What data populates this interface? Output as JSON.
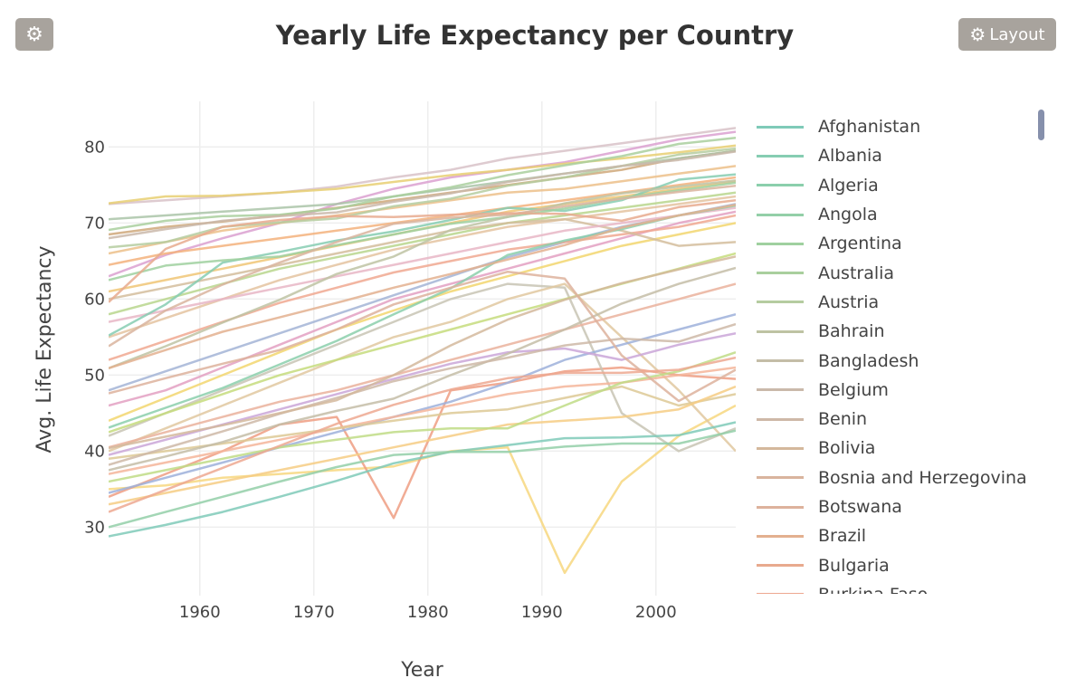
{
  "toolbar": {
    "settings_icon": "gear-icon",
    "layout_label": "Layout",
    "layout_icon": "gear-icon"
  },
  "chart_data": {
    "type": "line",
    "title": "Yearly Life Expectancy per Country",
    "xlabel": "Year",
    "ylabel": "Avg. Life Expectancy",
    "xlim": [
      1952,
      2007
    ],
    "ylim": [
      21,
      86
    ],
    "x_ticks": [
      1960,
      1970,
      1980,
      1990,
      2000
    ],
    "y_ticks": [
      30,
      40,
      50,
      60,
      70,
      80
    ],
    "grid": true,
    "legend_position": "right",
    "x": [
      1952,
      1957,
      1962,
      1967,
      1972,
      1977,
      1982,
      1987,
      1992,
      1997,
      2002,
      2007
    ],
    "series": [
      {
        "name": "Afghanistan",
        "color": "#7fcab8",
        "values": [
          28.8,
          30.3,
          32.0,
          34.0,
          36.1,
          38.4,
          39.9,
          40.8,
          41.7,
          41.8,
          42.1,
          43.8
        ]
      },
      {
        "name": "Albania",
        "color": "#86cdb2",
        "values": [
          55.2,
          59.3,
          64.8,
          66.2,
          67.7,
          68.9,
          70.4,
          72.0,
          71.6,
          73.0,
          75.7,
          76.4
        ]
      },
      {
        "name": "Algeria",
        "color": "#8bcfac",
        "values": [
          43.1,
          45.7,
          48.3,
          51.4,
          54.5,
          58.0,
          61.4,
          65.8,
          67.7,
          69.2,
          71.0,
          72.3
        ]
      },
      {
        "name": "Angola",
        "color": "#93cfa8",
        "values": [
          30.0,
          32.0,
          34.0,
          36.0,
          37.9,
          39.5,
          39.9,
          39.9,
          40.6,
          41.0,
          41.0,
          42.7
        ]
      },
      {
        "name": "Argentina",
        "color": "#9fd09f",
        "values": [
          62.5,
          64.4,
          65.1,
          65.6,
          67.1,
          68.5,
          69.9,
          70.8,
          71.9,
          73.3,
          74.3,
          75.3
        ]
      },
      {
        "name": "Australia",
        "color": "#a9cf9d",
        "values": [
          69.1,
          70.3,
          70.9,
          71.1,
          71.9,
          73.5,
          74.7,
          76.3,
          77.6,
          78.8,
          80.4,
          81.2
        ]
      },
      {
        "name": "Austria",
        "color": "#b5cca0",
        "values": [
          66.8,
          67.5,
          69.5,
          70.1,
          70.6,
          72.2,
          73.2,
          74.9,
          76.0,
          77.5,
          79.0,
          79.8
        ]
      },
      {
        "name": "Bahrain",
        "color": "#bec3a3",
        "values": [
          50.9,
          53.8,
          56.9,
          59.9,
          63.3,
          65.6,
          69.1,
          70.8,
          72.6,
          73.9,
          74.8,
          75.6
        ]
      },
      {
        "name": "Bangladesh",
        "color": "#c4bda7",
        "values": [
          37.5,
          39.3,
          41.2,
          43.5,
          45.3,
          46.9,
          50.0,
          52.8,
          56.0,
          59.4,
          62.0,
          64.1
        ]
      },
      {
        "name": "Belgium",
        "color": "#cab9aa",
        "values": [
          68.0,
          69.2,
          70.3,
          70.9,
          71.4,
          72.8,
          73.9,
          75.4,
          76.5,
          77.5,
          78.3,
          79.4
        ]
      },
      {
        "name": "Benin",
        "color": "#ceb8a7",
        "values": [
          38.2,
          40.4,
          42.6,
          44.9,
          47.0,
          49.2,
          50.9,
          52.3,
          53.9,
          54.8,
          54.4,
          56.7
        ]
      },
      {
        "name": "Bolivia",
        "color": "#d4b89c",
        "values": [
          40.4,
          41.9,
          43.4,
          45.0,
          46.7,
          50.0,
          53.9,
          57.3,
          59.9,
          62.1,
          63.9,
          65.6
        ]
      },
      {
        "name": "Bosnia and Herzegovina",
        "color": "#d9b49e",
        "values": [
          53.8,
          58.5,
          61.9,
          64.8,
          67.5,
          69.9,
          70.7,
          71.1,
          72.2,
          73.2,
          74.1,
          74.9
        ]
      },
      {
        "name": "Botswana",
        "color": "#ddb29c",
        "values": [
          47.6,
          49.6,
          51.5,
          53.3,
          56.0,
          59.3,
          61.5,
          63.6,
          62.7,
          52.6,
          46.6,
          50.7
        ]
      },
      {
        "name": "Brazil",
        "color": "#e3b08f",
        "values": [
          50.9,
          53.3,
          55.7,
          57.6,
          59.5,
          61.5,
          63.3,
          65.2,
          67.1,
          69.4,
          71.0,
          72.4
        ]
      },
      {
        "name": "Bulgaria",
        "color": "#e8aa8e",
        "values": [
          59.6,
          66.6,
          69.5,
          70.4,
          70.9,
          70.8,
          71.1,
          71.3,
          71.2,
          70.3,
          72.1,
          73.0
        ]
      },
      {
        "name": "Burkina Faso",
        "color": "#eda891",
        "values": [
          32.0,
          34.9,
          37.8,
          40.7,
          43.6,
          46.1,
          48.1,
          49.6,
          50.3,
          50.3,
          50.7,
          52.3
        ]
      }
    ],
    "extra_lines": [
      {
        "color": "#f7d77f",
        "values": [
          35.0,
          35.5,
          36.5,
          37.0,
          37.5,
          38.0,
          40.0,
          40.5,
          24.0,
          36.0,
          42.0,
          46.0
        ]
      },
      {
        "color": "#ee9e83",
        "values": [
          34.0,
          37.0,
          40.0,
          43.5,
          44.5,
          31.2,
          48.0,
          49.0,
          50.5,
          51.0,
          50.0,
          49.5
        ]
      },
      {
        "color": "#c8c4b4",
        "values": [
          42.0,
          45.0,
          48.0,
          51.0,
          54.0,
          57.0,
          60.0,
          62.0,
          61.5,
          45.0,
          40.0,
          43.0
        ]
      },
      {
        "color": "#e0c8a0",
        "values": [
          40.0,
          43.0,
          46.0,
          49.0,
          52.0,
          55.0,
          57.0,
          60.0,
          62.0,
          55.0,
          48.0,
          40.0
        ]
      },
      {
        "color": "#d8c2c8",
        "values": [
          72.5,
          73.0,
          73.5,
          74.0,
          74.8,
          76.0,
          77.0,
          78.5,
          79.5,
          80.5,
          81.5,
          82.5
        ]
      },
      {
        "color": "#dba0d0",
        "values": [
          63.0,
          65.8,
          68.0,
          70.0,
          72.5,
          74.5,
          76.0,
          77.0,
          78.0,
          79.5,
          81.0,
          82.0
        ]
      },
      {
        "color": "#e8cf72",
        "values": [
          72.6,
          73.5,
          73.6,
          74.0,
          74.5,
          75.4,
          76.3,
          77.0,
          77.8,
          78.5,
          79.3,
          80.2
        ]
      },
      {
        "color": "#cfa87a",
        "values": [
          68.5,
          69.5,
          70.2,
          71.0,
          72.0,
          73.0,
          74.0,
          75.0,
          76.0,
          77.0,
          78.5,
          79.5
        ]
      },
      {
        "color": "#f3b27c",
        "values": [
          64.5,
          66.0,
          67.0,
          68.0,
          69.0,
          70.0,
          71.0,
          72.0,
          73.0,
          74.0,
          75.0,
          76.0
        ]
      },
      {
        "color": "#f0c676",
        "values": [
          61.0,
          62.5,
          64.0,
          65.5,
          67.0,
          68.5,
          70.0,
          71.5,
          72.5,
          73.5,
          74.5,
          75.5
        ]
      },
      {
        "color": "#b9d68d",
        "values": [
          58.0,
          60.0,
          62.0,
          64.0,
          65.5,
          67.0,
          68.5,
          70.0,
          71.0,
          72.0,
          73.0,
          74.0
        ]
      },
      {
        "color": "#e4c3a0",
        "values": [
          55.0,
          57.5,
          60.0,
          62.5,
          64.5,
          66.5,
          68.0,
          69.5,
          70.5,
          71.5,
          72.5,
          73.5
        ]
      },
      {
        "color": "#a3b4d6",
        "values": [
          48.0,
          50.5,
          53.0,
          55.5,
          58.0,
          60.5,
          63.0,
          65.5,
          67.5,
          69.5,
          71.0,
          72.5
        ]
      },
      {
        "color": "#e3a0c2",
        "values": [
          46.0,
          48.0,
          51.0,
          54.0,
          57.0,
          60.0,
          62.0,
          64.0,
          66.0,
          68.0,
          70.0,
          71.5
        ]
      },
      {
        "color": "#f2d66e",
        "values": [
          44.0,
          47.0,
          50.0,
          53.0,
          56.0,
          58.5,
          61.0,
          63.0,
          65.0,
          67.0,
          68.5,
          70.0
        ]
      },
      {
        "color": "#c5dc7c",
        "values": [
          42.5,
          45.0,
          47.5,
          50.0,
          52.0,
          54.0,
          56.0,
          58.0,
          60.0,
          62.0,
          64.0,
          66.0
        ]
      },
      {
        "color": "#eab29c",
        "values": [
          40.5,
          42.5,
          44.5,
          46.5,
          48.0,
          50.0,
          52.0,
          54.0,
          56.0,
          58.0,
          60.0,
          62.0
        ]
      },
      {
        "color": "#9db0db",
        "values": [
          34.5,
          36.5,
          38.5,
          40.5,
          42.5,
          44.5,
          46.5,
          49.0,
          52.0,
          54.0,
          56.0,
          58.0
        ]
      },
      {
        "color": "#f5b59a",
        "values": [
          37.0,
          38.5,
          40.0,
          41.5,
          43.0,
          44.5,
          46.0,
          47.5,
          48.5,
          49.0,
          50.0,
          51.0
        ]
      },
      {
        "color": "#ddc995",
        "values": [
          39.0,
          40.0,
          41.0,
          42.0,
          43.0,
          44.0,
          45.0,
          45.5,
          47.0,
          48.5,
          46.0,
          47.5
        ]
      },
      {
        "color": "#f6cd84",
        "values": [
          33.0,
          34.5,
          36.0,
          37.5,
          39.0,
          40.5,
          42.0,
          43.5,
          44.0,
          44.5,
          45.5,
          48.5
        ]
      },
      {
        "color": "#bfdc86",
        "values": [
          36.0,
          37.5,
          39.0,
          40.5,
          41.5,
          42.5,
          43.0,
          43.0,
          46.0,
          49.0,
          50.5,
          53.0
        ]
      },
      {
        "color": "#caa6d8",
        "values": [
          39.5,
          41.5,
          43.5,
          45.5,
          47.5,
          49.5,
          51.5,
          53.0,
          53.5,
          52.0,
          54.0,
          55.5
        ]
      },
      {
        "color": "#f0a890",
        "values": [
          52.0,
          54.5,
          57.0,
          59.5,
          61.5,
          63.5,
          65.0,
          66.5,
          67.5,
          68.5,
          69.5,
          71.0
        ]
      },
      {
        "color": "#d4bd9c",
        "values": [
          60.0,
          61.5,
          63.0,
          64.5,
          66.0,
          67.5,
          69.0,
          70.0,
          70.5,
          69.0,
          67.0,
          67.5
        ]
      },
      {
        "color": "#aac4a8",
        "values": [
          70.5,
          71.0,
          71.5,
          72.0,
          72.5,
          73.5,
          74.5,
          75.5,
          76.5,
          77.5,
          78.5,
          79.5
        ]
      },
      {
        "color": "#ecc08a",
        "values": [
          66.0,
          67.5,
          69.0,
          70.0,
          71.0,
          72.0,
          73.0,
          74.0,
          74.5,
          75.5,
          76.5,
          77.5
        ]
      },
      {
        "color": "#e8b6c6",
        "values": [
          57.0,
          58.5,
          60.0,
          61.5,
          63.0,
          64.5,
          66.0,
          67.5,
          69.0,
          70.0,
          71.0,
          72.0
        ]
      }
    ]
  }
}
